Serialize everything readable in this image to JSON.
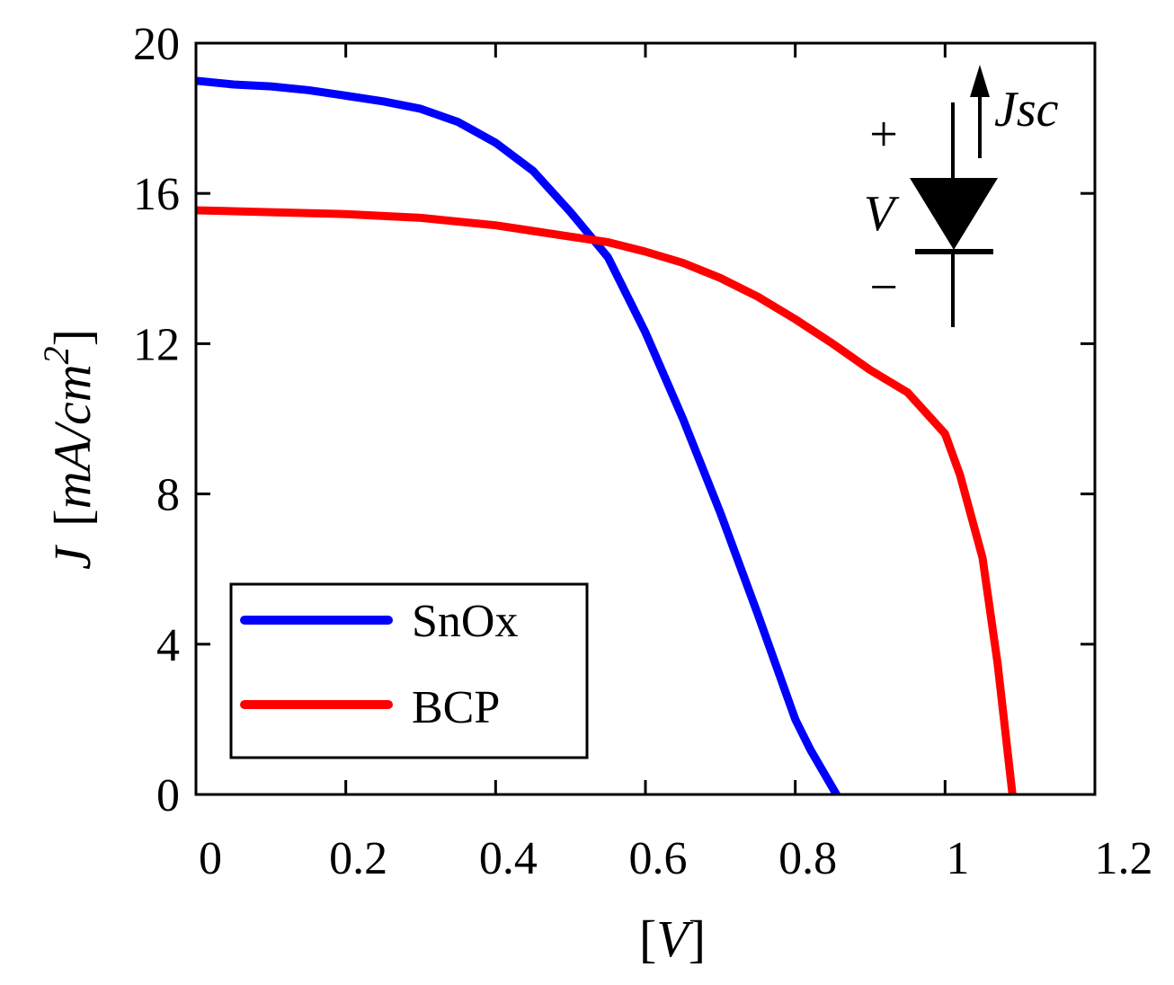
{
  "chart_data": {
    "type": "line",
    "xlabel": "[V]",
    "ylabel_parts": {
      "j": "J",
      "open": "[",
      "unit": "mA/cm",
      "sup": "2",
      "close": "]"
    },
    "xlim": [
      0,
      1.2
    ],
    "ylim": [
      0,
      20
    ],
    "xticks": [
      0,
      0.2,
      0.4,
      0.6,
      0.8,
      1,
      1.2
    ],
    "xtick_labels": [
      "0",
      "0.2",
      "0.4",
      "0.6",
      "0.8",
      "1",
      "1.2"
    ],
    "yticks": [
      0,
      4,
      8,
      12,
      16,
      20
    ],
    "ytick_labels": [
      "0",
      "4",
      "8",
      "12",
      "16",
      "20"
    ],
    "grid": false,
    "legend_position": "bottom-left",
    "series": [
      {
        "name": "SnOx",
        "color": "#0000ff",
        "x": [
          0,
          0.05,
          0.1,
          0.15,
          0.2,
          0.25,
          0.3,
          0.35,
          0.4,
          0.45,
          0.5,
          0.55,
          0.6,
          0.65,
          0.7,
          0.75,
          0.8,
          0.82,
          0.855
        ],
        "y": [
          19.0,
          18.9,
          18.85,
          18.75,
          18.6,
          18.45,
          18.25,
          17.9,
          17.35,
          16.6,
          15.5,
          14.3,
          12.3,
          10.0,
          7.5,
          4.8,
          2.0,
          1.2,
          0.0
        ]
      },
      {
        "name": "BCP",
        "color": "#ff0000",
        "x": [
          0,
          0.1,
          0.2,
          0.3,
          0.4,
          0.45,
          0.5,
          0.55,
          0.6,
          0.65,
          0.7,
          0.75,
          0.8,
          0.85,
          0.9,
          0.95,
          1.0,
          1.02,
          1.05,
          1.07,
          1.09
        ],
        "y": [
          15.55,
          15.5,
          15.45,
          15.35,
          15.15,
          15.0,
          14.85,
          14.7,
          14.45,
          14.15,
          13.75,
          13.25,
          12.65,
          12.0,
          11.3,
          10.7,
          9.6,
          8.5,
          6.3,
          3.5,
          0.0
        ]
      }
    ],
    "inset": {
      "plus": "+",
      "minus": "−",
      "voltage": "V",
      "current": "J",
      "current_sub": "sc"
    }
  }
}
